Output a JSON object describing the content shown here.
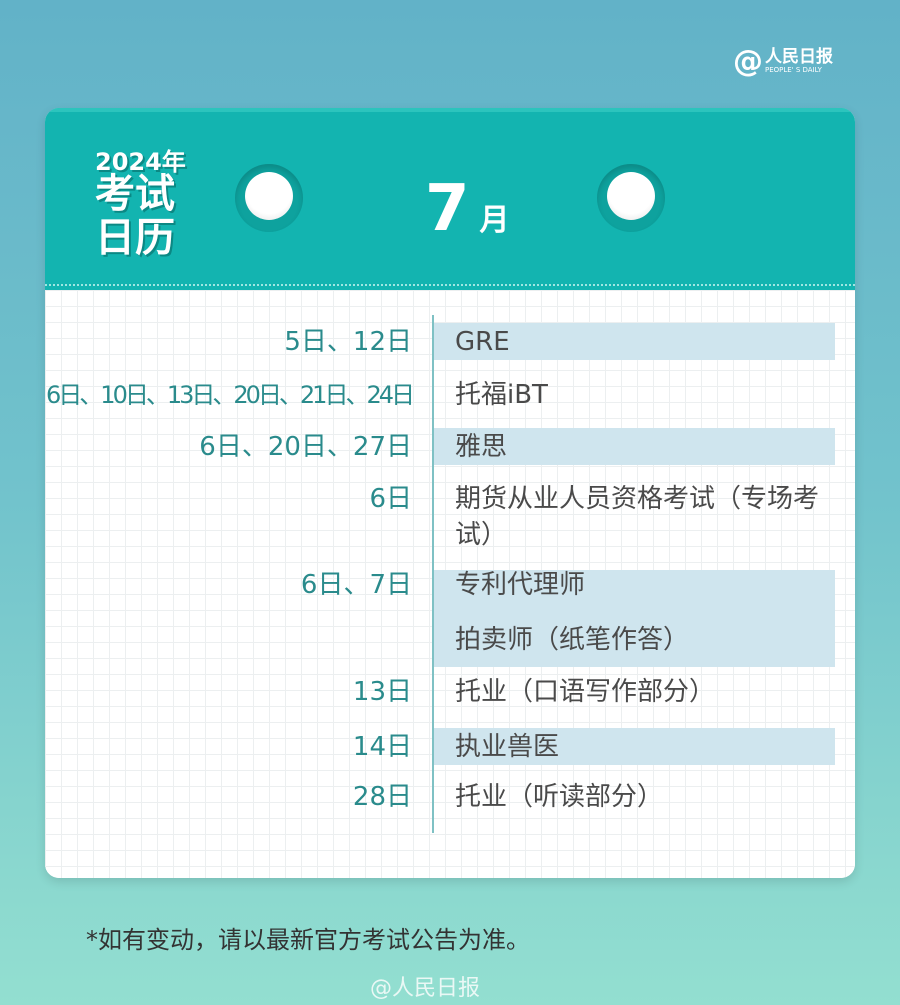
{
  "logo": {
    "at": "@",
    "name": "人民日报",
    "english": "PEOPLE' S DAILY"
  },
  "header": {
    "year": "2024年",
    "title_line1": "考试",
    "title_line2": "日历",
    "month_number": "7",
    "month_unit": "月"
  },
  "rows": [
    {
      "dates": "5日、12日",
      "exam": "GRE",
      "highlight": true
    },
    {
      "dates": "6日、10日、13日、20日、21日、24日",
      "exam": "托福iBT",
      "highlight": false
    },
    {
      "dates": "6日、20日、27日",
      "exam": "雅思",
      "highlight": true
    },
    {
      "dates": "6日",
      "exam": "期货从业人员资格考试（专场考试）",
      "highlight": false
    },
    {
      "dates": "6日、7日",
      "exam": "专利代理师",
      "exam2": "拍卖师（纸笔作答）",
      "highlight": true
    },
    {
      "dates": "13日",
      "exam": "托业（口语写作部分）",
      "highlight": false
    },
    {
      "dates": "14日",
      "exam": "执业兽医",
      "highlight": true
    },
    {
      "dates": "28日",
      "exam": "托业（听读部分）",
      "highlight": false
    }
  ],
  "footer": {
    "note": "*如有变动，请以最新官方考试公告为准。",
    "watermark": "@人民日报"
  },
  "colors": {
    "header": "#13b4b0",
    "highlight": "#cfe5ee",
    "date_text": "#2a8b8c"
  }
}
